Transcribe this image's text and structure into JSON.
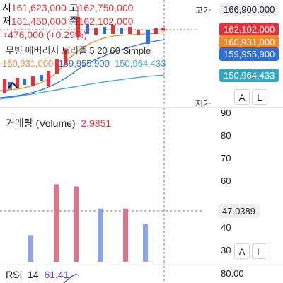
{
  "price_panel": {
    "open_label": "시",
    "open_value": "161,623,000",
    "high_label": "고",
    "high_value": "162,750,000",
    "low_label": "저",
    "low_value": "161,450,000",
    "close_label": "종",
    "close_value": "162,102,000",
    "change": "+476,000 (+0.29%)",
    "ma_title": "무빙 애버리지 트리플 5 20 60 Simple",
    "ma5_value": "160,931,000",
    "ma20_value": "159,955,900",
    "ma60_value": "150,964,433",
    "high_tag_label": "고가",
    "high_tag_value": "166,900,000",
    "low_tag_label": "저가",
    "tag_close": "162,102,000",
    "tag_ma5": "160,931,000",
    "tag_ma20": "159,955,900",
    "tag_ma60": "150,964,433",
    "btn_auto": "A",
    "btn_log": "L",
    "collapse_icon": "chevron-up-icon"
  },
  "volume_panel": {
    "title": "거래량 (Volume)",
    "value": "2.9851",
    "axis_ticks": [
      "90",
      "80",
      "70",
      "60",
      "50",
      "40",
      "30"
    ],
    "crosshair_value": "47.0389",
    "btn_auto": "A",
    "btn_log": "L"
  },
  "rsi_panel": {
    "title": "RSI",
    "period": "14",
    "value": "61.41",
    "axis_top": "80.00"
  },
  "colors": {
    "up": "#e0333c",
    "down": "#2a6fdb",
    "ma5": "#f08a2c",
    "ma20": "#2a6fdb",
    "ma60": "#35a8c9",
    "vol_up": "#d9778a",
    "vol_down": "#8fa5e8"
  },
  "chart_data": {
    "type": "bar",
    "title": "거래량 (Volume)",
    "ylim": [
      25,
      92
    ],
    "series": [
      {
        "name": "up",
        "values": [
          31,
          31,
          60,
          31,
          59,
          31,
          31,
          49,
          31,
          31,
          29
        ]
      },
      {
        "name": "down",
        "values": [
          31,
          37,
          31,
          49,
          31,
          31,
          42,
          31,
          30,
          30,
          30
        ]
      }
    ]
  }
}
